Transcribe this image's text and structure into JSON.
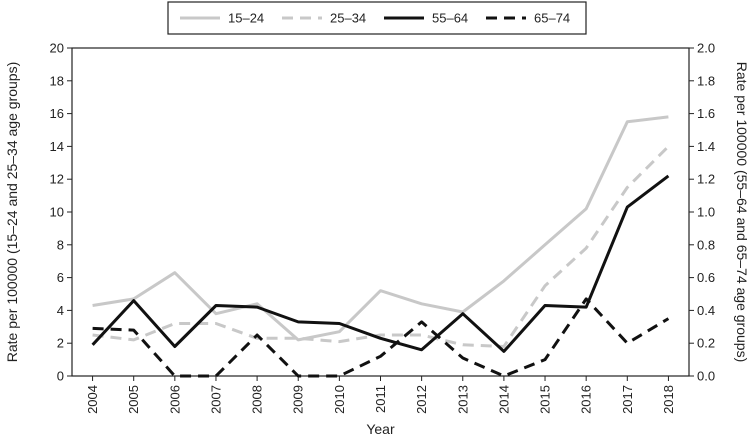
{
  "chart_data": {
    "type": "line",
    "xlabel": "Year",
    "ylabel_left": "Rate per 100000 (15–24 and 25–34 age groups)",
    "ylabel_right": "Rate per 100000 (55–64 and 65–74 age groups)",
    "x": [
      "2004",
      "2005",
      "2006",
      "2007",
      "2008",
      "2009",
      "2010",
      "2011",
      "2012",
      "2013",
      "2014",
      "2015",
      "2016",
      "2017",
      "2018"
    ],
    "ylim_left": [
      0,
      20
    ],
    "yticks_left": [
      "0",
      "2",
      "4",
      "6",
      "8",
      "10",
      "12",
      "14",
      "16",
      "18",
      "20"
    ],
    "ylim_right": [
      0,
      2.0
    ],
    "yticks_right": [
      "0.0",
      "0.2",
      "0.4",
      "0.6",
      "0.8",
      "1.0",
      "1.2",
      "1.4",
      "1.6",
      "1.8",
      "2.0"
    ],
    "grid": false,
    "legend_position": "top-center",
    "series": [
      {
        "name": "15–24",
        "axis": "left",
        "color": "#c8c8c8",
        "style": "solid",
        "values": [
          4.3,
          4.7,
          6.3,
          3.8,
          4.4,
          2.2,
          2.7,
          5.2,
          4.4,
          3.9,
          5.8,
          8.0,
          10.2,
          15.5,
          15.8
        ]
      },
      {
        "name": "25–34",
        "axis": "left",
        "color": "#c8c8c8",
        "style": "dashed",
        "values": [
          2.5,
          2.2,
          3.2,
          3.2,
          2.3,
          2.3,
          2.1,
          2.5,
          2.5,
          1.9,
          1.8,
          5.5,
          7.8,
          11.5,
          14.0
        ]
      },
      {
        "name": "55–64",
        "axis": "right",
        "color": "#111111",
        "style": "solid",
        "values": [
          0.19,
          0.46,
          0.18,
          0.43,
          0.42,
          0.33,
          0.32,
          0.23,
          0.16,
          0.38,
          0.15,
          0.43,
          0.42,
          1.03,
          1.22
        ]
      },
      {
        "name": "65–74",
        "axis": "right",
        "color": "#111111",
        "style": "dashed",
        "values": [
          0.29,
          0.28,
          0.0,
          0.0,
          0.25,
          0.0,
          0.0,
          0.12,
          0.33,
          0.11,
          0.0,
          0.1,
          0.47,
          0.2,
          0.35
        ]
      }
    ]
  }
}
